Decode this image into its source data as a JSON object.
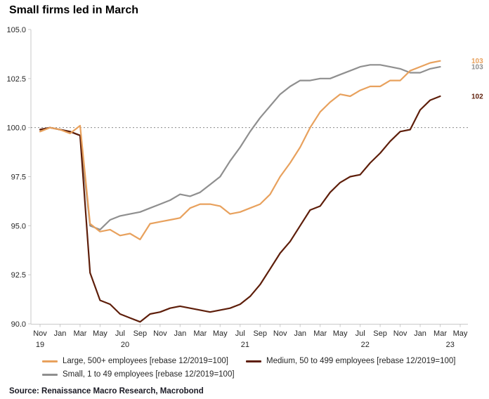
{
  "title": "Small firms led in March",
  "source": "Source: Renaissance Macro Research, Macrobond",
  "colors": {
    "large": "#E8A15D",
    "medium": "#5E1E0A",
    "small": "#8F8F8F",
    "axis": "#C9C9C9",
    "reference_line": "#8A8A8A",
    "text": "#262626"
  },
  "chart_data": {
    "type": "line",
    "title": "Small firms led in March",
    "xlabel": "",
    "ylabel": "",
    "ylim": [
      90.0,
      105.0
    ],
    "yticks": [
      90.0,
      92.5,
      95.0,
      97.5,
      100.0,
      102.5,
      105.0
    ],
    "reference_line": 100.0,
    "grid": false,
    "legend_position": "bottom",
    "x": [
      "2019-11",
      "2019-12",
      "2020-01",
      "2020-02",
      "2020-03",
      "2020-04",
      "2020-05",
      "2020-06",
      "2020-07",
      "2020-08",
      "2020-09",
      "2020-10",
      "2020-11",
      "2020-12",
      "2021-01",
      "2021-02",
      "2021-03",
      "2021-04",
      "2021-05",
      "2021-06",
      "2021-07",
      "2021-08",
      "2021-09",
      "2021-10",
      "2021-11",
      "2021-12",
      "2022-01",
      "2022-02",
      "2022-03",
      "2022-04",
      "2022-05",
      "2022-06",
      "2022-07",
      "2022-08",
      "2022-09",
      "2022-10",
      "2022-11",
      "2022-12",
      "2023-01",
      "2023-02",
      "2023-03"
    ],
    "x_axis_end": "2023-05",
    "x_tick_labels": [
      "Nov",
      "Jan",
      "Mar",
      "May",
      "Jul",
      "Sep",
      "Nov",
      "Jan",
      "Mar",
      "May",
      "Jul",
      "Sep",
      "Nov",
      "Jan",
      "Mar",
      "May",
      "Jul",
      "Sep",
      "Nov",
      "Jan",
      "Mar",
      "May"
    ],
    "x_tick_indices": [
      0,
      2,
      4,
      6,
      8,
      10,
      12,
      14,
      16,
      18,
      20,
      22,
      24,
      26,
      28,
      30,
      32,
      34,
      36,
      38,
      40,
      42
    ],
    "year_tick_labels": [
      "19",
      "20",
      "21",
      "22",
      "23"
    ],
    "year_tick_indices": [
      0,
      8.5,
      20.5,
      32.5,
      41
    ],
    "series": [
      {
        "id": "large",
        "name": "Large, 500+ employees [rebase 12/2019=100]",
        "color": "#E8A15D",
        "end_label": "103",
        "values": [
          99.8,
          100.0,
          99.9,
          99.7,
          100.1,
          95.1,
          94.7,
          94.8,
          94.5,
          94.6,
          94.3,
          95.1,
          95.2,
          95.3,
          95.4,
          95.9,
          96.1,
          96.1,
          96.0,
          95.6,
          95.7,
          95.9,
          96.1,
          96.6,
          97.5,
          98.2,
          99.0,
          100.0,
          100.8,
          101.3,
          101.7,
          101.6,
          101.9,
          102.1,
          102.1,
          102.4,
          102.4,
          102.9,
          103.1,
          103.3,
          103.4
        ]
      },
      {
        "id": "medium",
        "name": "Medium, 50 to 499 employees [rebase 12/2019=100]",
        "color": "#5E1E0A",
        "end_label": "102",
        "values": [
          99.9,
          100.0,
          99.9,
          99.8,
          99.6,
          92.6,
          91.2,
          91.0,
          90.5,
          90.3,
          90.1,
          90.5,
          90.6,
          90.8,
          90.9,
          90.8,
          90.7,
          90.6,
          90.7,
          90.8,
          91.0,
          91.4,
          92.0,
          92.8,
          93.6,
          94.2,
          95.0,
          95.8,
          96.0,
          96.7,
          97.2,
          97.5,
          97.6,
          98.2,
          98.7,
          99.3,
          99.8,
          99.9,
          100.9,
          101.4,
          101.6
        ]
      },
      {
        "id": "small",
        "name": "Small, 1 to 49 employees [rebase 12/2019=100]",
        "color": "#8F8F8F",
        "end_label": "103",
        "values": [
          99.9,
          100.0,
          99.9,
          99.8,
          99.6,
          95.0,
          94.8,
          95.3,
          95.5,
          95.6,
          95.7,
          95.9,
          96.1,
          96.3,
          96.6,
          96.5,
          96.7,
          97.1,
          97.5,
          98.3,
          99.0,
          99.8,
          100.5,
          101.1,
          101.7,
          102.1,
          102.4,
          102.4,
          102.5,
          102.5,
          102.7,
          102.9,
          103.1,
          103.2,
          103.2,
          103.1,
          103.0,
          102.8,
          102.8,
          103.0,
          103.1
        ]
      }
    ]
  }
}
